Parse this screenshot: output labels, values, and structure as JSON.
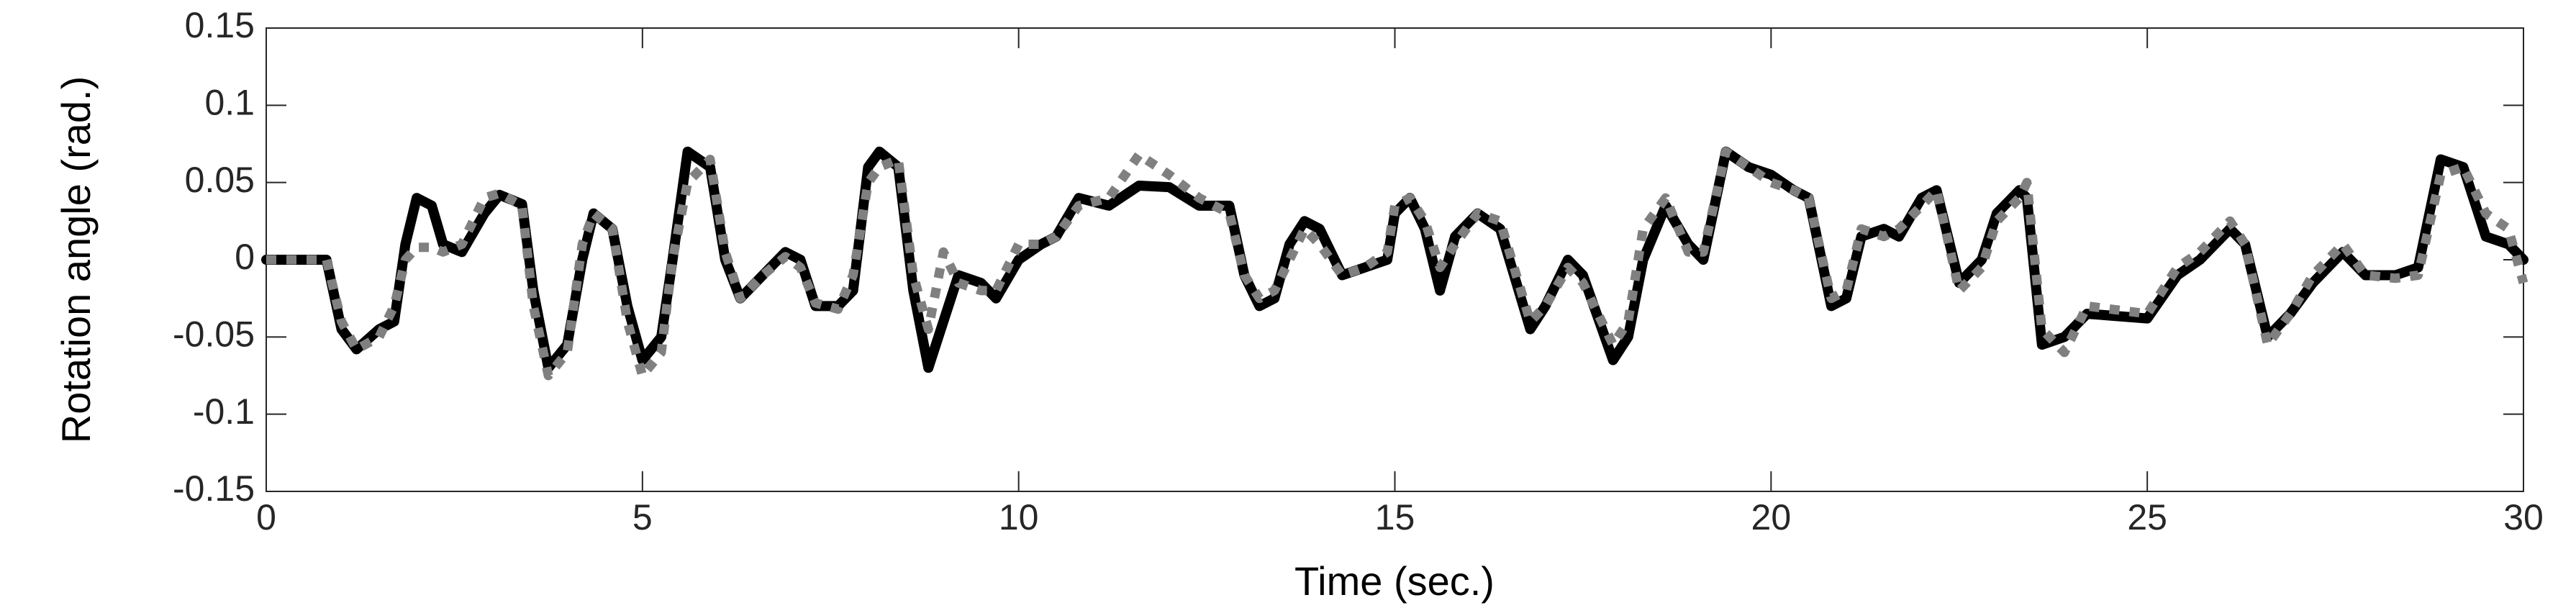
{
  "chart_data": {
    "type": "line",
    "xlabel": "Time (sec.)",
    "ylabel": "Rotation angle (rad.)",
    "x": [
      0,
      0.8,
      1.0,
      1.2,
      1.5,
      1.7,
      1.85,
      2.0,
      2.2,
      2.35,
      2.6,
      2.9,
      3.1,
      3.4,
      3.55,
      3.75,
      4.0,
      4.2,
      4.35,
      4.6,
      4.8,
      5.0,
      5.25,
      5.4,
      5.6,
      5.9,
      6.1,
      6.3,
      6.6,
      6.9,
      7.1,
      7.3,
      7.6,
      7.8,
      8.0,
      8.15,
      8.4,
      8.6,
      8.8,
      9.0,
      9.2,
      9.5,
      9.7,
      10.0,
      10.3,
      10.5,
      10.8,
      11.2,
      11.6,
      12.0,
      12.4,
      12.8,
      13.0,
      13.2,
      13.4,
      13.6,
      13.8,
      14.0,
      14.3,
      14.6,
      14.9,
      15.0,
      15.2,
      15.4,
      15.6,
      15.8,
      16.1,
      16.4,
      16.8,
      17.0,
      17.3,
      17.5,
      17.9,
      18.1,
      18.3,
      18.6,
      18.9,
      19.1,
      19.4,
      19.7,
      20.0,
      20.3,
      20.5,
      20.8,
      21.0,
      21.2,
      21.5,
      21.7,
      22.0,
      22.2,
      22.5,
      22.8,
      23.0,
      23.3,
      23.4,
      23.6,
      23.9,
      24.2,
      25.0,
      25.4,
      25.7,
      26.1,
      26.3,
      26.6,
      26.9,
      27.2,
      27.6,
      27.9,
      28.3,
      28.6,
      28.9,
      29.2,
      29.5,
      29.8,
      30
    ],
    "series": [
      {
        "color": "#000000",
        "style": "solid",
        "values": [
          0,
          0,
          -0.045,
          -0.058,
          -0.045,
          -0.04,
          0.01,
          0.04,
          0.035,
          0.01,
          0.005,
          0.03,
          0.042,
          0.036,
          -0.02,
          -0.07,
          -0.055,
          0.0,
          0.03,
          0.02,
          -0.03,
          -0.065,
          -0.05,
          0.0,
          0.07,
          0.06,
          0.0,
          -0.025,
          -0.01,
          0.005,
          0.0,
          -0.03,
          -0.03,
          -0.02,
          0.06,
          0.07,
          0.06,
          -0.02,
          -0.07,
          -0.04,
          -0.01,
          -0.015,
          -0.025,
          0.0,
          0.01,
          0.015,
          0.04,
          0.035,
          0.048,
          0.047,
          0.035,
          0.035,
          -0.01,
          -0.03,
          -0.025,
          0.01,
          0.025,
          0.02,
          -0.01,
          -0.005,
          0.0,
          0.03,
          0.04,
          0.02,
          -0.02,
          0.015,
          0.03,
          0.02,
          -0.045,
          -0.03,
          0.0,
          -0.01,
          -0.065,
          -0.05,
          0.0,
          0.035,
          0.01,
          0.0,
          0.07,
          0.06,
          0.055,
          0.045,
          0.04,
          -0.03,
          -0.025,
          0.015,
          0.02,
          0.015,
          0.04,
          0.045,
          -0.015,
          0.0,
          0.03,
          0.045,
          0.04,
          -0.055,
          -0.05,
          -0.035,
          -0.038,
          -0.01,
          0.0,
          0.02,
          0.01,
          -0.05,
          -0.035,
          -0.015,
          0.005,
          -0.01,
          -0.01,
          -0.005,
          0.065,
          0.06,
          0.015,
          0.01,
          0.0
        ]
      },
      {
        "color": "#808080",
        "style": "dotted",
        "values": [
          0,
          0,
          -0.04,
          -0.058,
          -0.05,
          -0.03,
          0.0,
          0.008,
          0.008,
          0.005,
          0.01,
          0.04,
          0.043,
          0.035,
          -0.03,
          -0.075,
          -0.06,
          0.01,
          0.03,
          0.02,
          -0.04,
          -0.075,
          -0.06,
          0.0,
          0.05,
          0.065,
          0.005,
          -0.025,
          -0.01,
          0.002,
          -0.005,
          -0.028,
          -0.032,
          -0.01,
          0.05,
          0.06,
          0.065,
          -0.01,
          -0.045,
          0.005,
          -0.015,
          -0.02,
          -0.02,
          0.01,
          0.01,
          0.015,
          0.035,
          0.04,
          0.068,
          0.055,
          0.04,
          0.03,
          -0.01,
          -0.025,
          -0.02,
          0.0,
          0.02,
          0.01,
          -0.01,
          -0.005,
          0.005,
          0.035,
          0.04,
          0.025,
          -0.005,
          0.01,
          0.03,
          0.025,
          -0.04,
          -0.03,
          -0.005,
          -0.015,
          -0.055,
          -0.04,
          0.02,
          0.04,
          0.005,
          0.005,
          0.07,
          0.06,
          0.05,
          0.045,
          0.04,
          -0.025,
          -0.02,
          0.02,
          0.015,
          0.02,
          0.035,
          0.045,
          -0.02,
          -0.005,
          0.025,
          0.04,
          0.05,
          -0.045,
          -0.06,
          -0.03,
          -0.035,
          -0.005,
          0.005,
          0.025,
          0.01,
          -0.055,
          -0.035,
          -0.01,
          0.01,
          -0.01,
          -0.012,
          -0.01,
          0.055,
          0.06,
          0.03,
          0.02,
          -0.015
        ]
      }
    ],
    "xlim": [
      0,
      30
    ],
    "xticks": [
      0,
      5,
      10,
      15,
      20,
      25,
      30
    ],
    "ylim": [
      -0.15,
      0.15
    ],
    "yticks": [
      -0.15,
      -0.1,
      -0.05,
      0,
      0.05,
      0.1,
      0.15
    ],
    "grid": false
  }
}
